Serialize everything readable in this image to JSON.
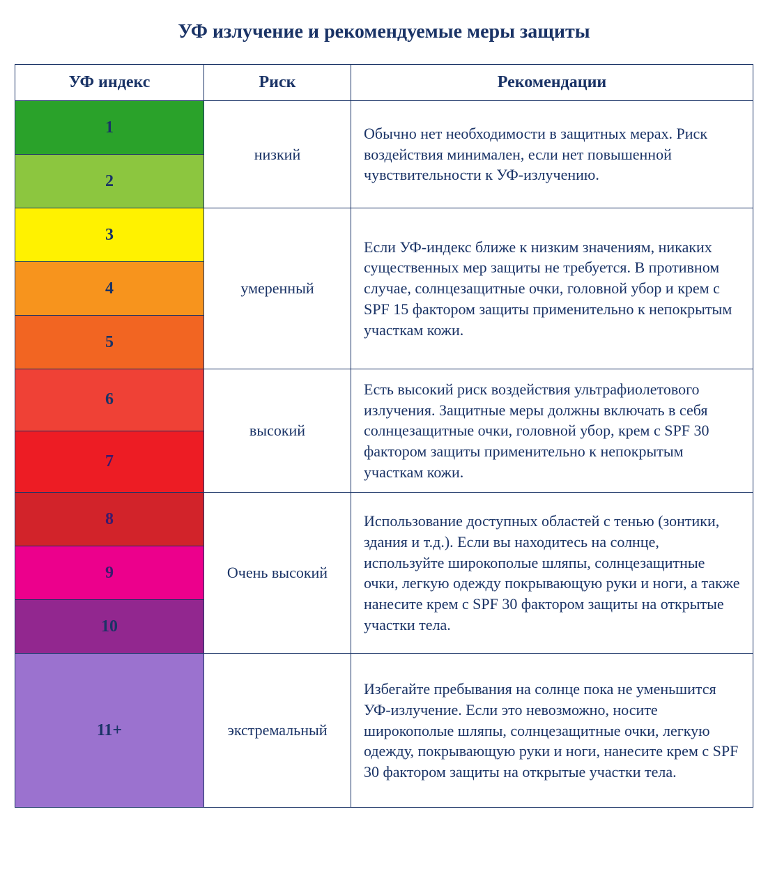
{
  "title": "УФ излучение и рекомендуемые меры защиты",
  "text_color": "#1a3366",
  "border_color": "#1a3366",
  "columns": {
    "index": "УФ индекс",
    "risk": "Риск",
    "recommendations": "Рекомендации"
  },
  "column_widths": {
    "index": 270,
    "risk": 190
  },
  "fonts": {
    "title_size": 28,
    "header_size": 24,
    "index_size": 24,
    "body_size": 22
  },
  "groups": [
    {
      "risk": "низкий",
      "recommendation": "Обычно нет необходимости в защитных мерах. Риск воздействия минимален, если нет повышенной чувствительности к УФ-излучению.",
      "rows": [
        {
          "label": "1",
          "bg": "#2aa22a",
          "fg": "#1a3366"
        },
        {
          "label": "2",
          "bg": "#8cc63f",
          "fg": "#1a3366"
        }
      ]
    },
    {
      "risk": "умеренный",
      "recommendation": "Если УФ-индекс ближе к низким значениям, никаких существенных мер защиты не требуется. В противном случае, солнцезащитные очки, головной убор и крем с SPF 15 фактором защиты применительно к непокрытым участкам кожи.",
      "rows": [
        {
          "label": "3",
          "bg": "#fff200",
          "fg": "#1a3366"
        },
        {
          "label": "4",
          "bg": "#f7941d",
          "fg": "#1a3366"
        },
        {
          "label": "5",
          "bg": "#f26522",
          "fg": "#1a3366"
        }
      ]
    },
    {
      "risk": "высокий",
      "recommendation": "Есть высокий риск воздействия ультрафиолетового излучения. Защитные меры должны включать в себя солнцезащитные очки, головной убор, крем с SPF 30 фактором защиты применительно к непокрытым участкам кожи.",
      "rows": [
        {
          "label": "6",
          "bg": "#ef4136",
          "fg": "#1a3366"
        },
        {
          "label": "7",
          "bg": "#ed1c24",
          "fg": "#3a1a6e"
        }
      ]
    },
    {
      "risk": "Очень высокий",
      "recommendation": "Использование доступных областей с тенью (зонтики, здания и т.д.). Если вы находитесь на солнце, используйте широкополые шляпы, солнцезащитные очки, легкую одежду покрывающую руки и ноги, а также нанесите крем с SPF 30 фактором защиты на открытые участки тела.",
      "rows": [
        {
          "label": "8",
          "bg": "#d2232a",
          "fg": "#3a1a6e"
        },
        {
          "label": "9",
          "bg": "#ec008c",
          "fg": "#3a1a6e"
        },
        {
          "label": "10",
          "bg": "#92278f",
          "fg": "#1a3366"
        }
      ]
    },
    {
      "risk": "экстремальный",
      "recommendation": "Избегайте пребывания на солнце пока не уменьшится УФ-излучение. Если это невозможно, носите широкополые шляпы, солнцезащитные очки, легкую одежду, покрывающую руки и ноги, нанесите крем с SPF 30 фактором защиты на открытые участки тела.",
      "rows": [
        {
          "label": "11+",
          "bg": "#9b72cf",
          "fg": "#1a3366",
          "tall": true
        }
      ]
    }
  ]
}
